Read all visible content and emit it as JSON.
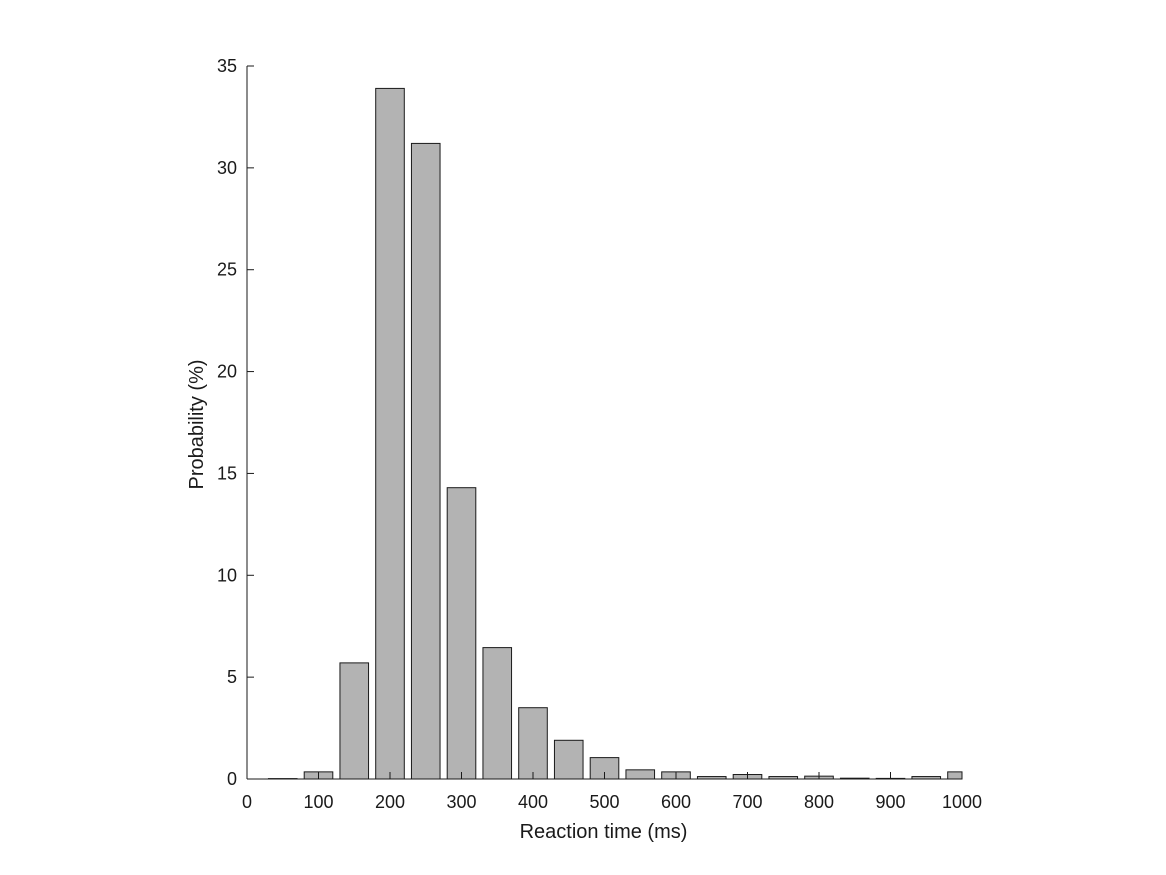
{
  "chart_data": {
    "type": "bar",
    "title": "",
    "xlabel": "Reaction time (ms)",
    "ylabel": "Probability (%)",
    "xlim": [
      0,
      1000
    ],
    "ylim": [
      0,
      35
    ],
    "xticks": [
      0,
      100,
      200,
      300,
      400,
      500,
      600,
      700,
      800,
      900,
      1000
    ],
    "xtick_labels": [
      "0",
      "100",
      "200",
      "300",
      "400",
      "500",
      "600",
      "700",
      "800",
      "900",
      "1000"
    ],
    "yticks": [
      0,
      5,
      10,
      15,
      20,
      25,
      30,
      35
    ],
    "ytick_labels": [
      "0",
      "5",
      "10",
      "15",
      "20",
      "25",
      "30",
      "35"
    ],
    "bar_width": 40,
    "bar_color": "#b3b3b3",
    "grid": false,
    "x": [
      50,
      100,
      150,
      200,
      250,
      300,
      350,
      400,
      450,
      500,
      550,
      600,
      650,
      700,
      750,
      800,
      850,
      900,
      950,
      1000
    ],
    "values": [
      0.02,
      0.35,
      5.7,
      33.9,
      31.2,
      14.3,
      6.45,
      3.5,
      1.9,
      1.05,
      0.45,
      0.35,
      0.12,
      0.22,
      0.12,
      0.14,
      0.04,
      0.03,
      0.12,
      0.35
    ]
  }
}
